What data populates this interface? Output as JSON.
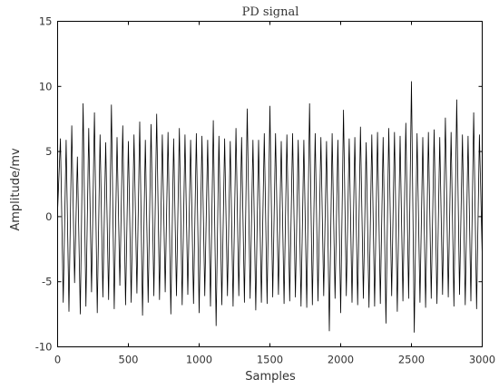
{
  "chart_data": {
    "type": "line",
    "title": "PD signal",
    "xlabel": "Samples",
    "ylabel": "Amplitude/mv",
    "xlim": [
      0,
      3000
    ],
    "ylim": [
      -10,
      15
    ],
    "x_ticks": [
      0,
      500,
      1000,
      1500,
      2000,
      2500,
      3000
    ],
    "y_ticks": [
      -10,
      -5,
      0,
      5,
      10,
      15
    ],
    "x_tick_labels": [
      "0",
      "500",
      "1000",
      "1500",
      "2000",
      "2500",
      "3000"
    ],
    "y_tick_labels": [
      "-10",
      "-5",
      "0",
      "5",
      "10",
      "15"
    ],
    "grid": false,
    "line_color": "#000000",
    "series": [
      {
        "x": [
          0,
          20,
          40,
          60,
          80,
          100,
          120,
          140,
          160,
          180,
          200,
          220,
          240,
          260,
          280,
          300,
          320,
          340,
          360,
          380,
          400,
          420,
          440,
          460,
          480,
          500,
          520,
          540,
          560,
          580,
          600,
          620,
          640,
          660,
          680,
          700,
          720,
          740,
          760,
          780,
          800,
          820,
          840,
          860,
          880,
          900,
          920,
          940,
          960,
          980,
          1000,
          1020,
          1040,
          1060,
          1080,
          1100,
          1120,
          1140,
          1160,
          1180,
          1200,
          1220,
          1240,
          1260,
          1280,
          1300,
          1320,
          1340,
          1360,
          1380,
          1400,
          1420,
          1440,
          1460,
          1480,
          1500,
          1520,
          1540,
          1560,
          1580,
          1600,
          1620,
          1640,
          1660,
          1680,
          1700,
          1720,
          1740,
          1760,
          1780,
          1800,
          1820,
          1840,
          1860,
          1880,
          1900,
          1920,
          1940,
          1960,
          1980,
          2000,
          2020,
          2040,
          2060,
          2080,
          2100,
          2120,
          2140,
          2160,
          2180,
          2200,
          2220,
          2240,
          2260,
          2280,
          2300,
          2320,
          2340,
          2360,
          2380,
          2400,
          2420,
          2440,
          2460,
          2480,
          2500,
          2520,
          2540,
          2560,
          2580,
          2600,
          2620,
          2640,
          2660,
          2680,
          2700,
          2720,
          2740,
          2760,
          2780,
          2800,
          2820,
          2840,
          2860,
          2880,
          2900,
          2920,
          2940,
          2960,
          2980,
          3000
        ],
        "y": [
          0.5,
          6.0,
          -6.6,
          5.9,
          -7.3,
          7.0,
          -5.1,
          4.6,
          -7.5,
          8.7,
          -6.9,
          6.8,
          -5.8,
          8.0,
          -7.4,
          6.3,
          -6.2,
          5.7,
          -6.4,
          8.6,
          -7.1,
          6.1,
          -5.3,
          7.0,
          -6.8,
          5.8,
          -6.6,
          6.3,
          -5.9,
          7.3,
          -7.6,
          5.9,
          -6.6,
          7.1,
          -6.1,
          7.9,
          -6.4,
          6.3,
          -5.8,
          6.5,
          -7.5,
          6.0,
          -6.1,
          6.8,
          -6.8,
          6.3,
          -6.0,
          5.9,
          -6.7,
          6.4,
          -7.4,
          6.2,
          -6.1,
          5.9,
          -6.9,
          7.4,
          -8.4,
          6.2,
          -6.8,
          6.0,
          -6.1,
          5.8,
          -6.9,
          6.8,
          -6.1,
          6.1,
          -6.6,
          8.3,
          -6.3,
          5.9,
          -7.2,
          5.9,
          -6.6,
          6.4,
          -6.7,
          8.5,
          -6.2,
          6.4,
          -6.0,
          5.8,
          -6.7,
          6.3,
          -6.5,
          6.4,
          -6.2,
          5.9,
          -6.9,
          5.9,
          -7.0,
          8.7,
          -6.8,
          6.4,
          -6.5,
          6.1,
          -6.1,
          5.8,
          -8.8,
          6.4,
          -6.3,
          5.9,
          -7.4,
          8.2,
          -6.1,
          6.0,
          -6.6,
          6.1,
          -6.8,
          6.9,
          -6.3,
          5.7,
          -7.0,
          6.3,
          -6.9,
          6.5,
          -6.7,
          6.1,
          -8.2,
          6.8,
          -6.1,
          6.5,
          -7.3,
          6.2,
          -6.5,
          7.2,
          -6.3,
          10.4,
          -8.9,
          6.4,
          -6.6,
          6.1,
          -7.0,
          6.5,
          -6.3,
          6.7,
          -6.7,
          6.1,
          -6.0,
          7.6,
          -6.2,
          6.5,
          -6.9,
          9.0,
          -6.0,
          6.3,
          -6.8,
          6.2,
          -6.5,
          8.0,
          -7.1,
          6.3,
          -3.0
        ]
      }
    ]
  }
}
